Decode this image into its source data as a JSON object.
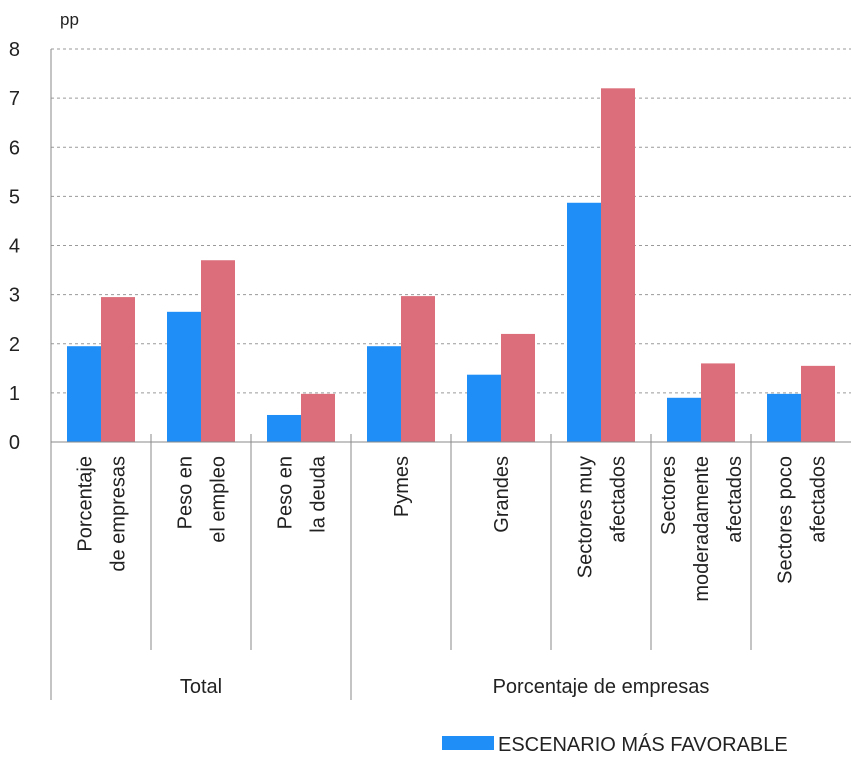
{
  "chart_data": {
    "type": "bar",
    "unit_label": "pp",
    "ylim": [
      0,
      8
    ],
    "yticks": [
      0,
      1,
      2,
      3,
      4,
      5,
      6,
      7,
      8
    ],
    "grid": "horizontal-dashed",
    "categories": [
      [
        "Porcentaje",
        "de empresas"
      ],
      [
        "Peso en",
        "el empleo"
      ],
      [
        "Peso en",
        "la deuda"
      ],
      [
        "Pymes"
      ],
      [
        "Grandes"
      ],
      [
        "Sectores muy",
        "afectados"
      ],
      [
        "Sectores",
        "moderadamente",
        "afectados"
      ],
      [
        "Sectores poco",
        "afectados"
      ]
    ],
    "groups": [
      {
        "label": "Total",
        "span": [
          0,
          2
        ]
      },
      {
        "label": "Porcentaje de empresas",
        "span": [
          3,
          7
        ]
      }
    ],
    "series": [
      {
        "name": "ESCENARIO MÁS FAVORABLE",
        "color": "#1f8ff7",
        "values": [
          1.95,
          2.65,
          0.55,
          1.95,
          1.37,
          4.87,
          0.9,
          0.98
        ]
      },
      {
        "name": "",
        "color": "#db6e7a",
        "values": [
          2.95,
          3.7,
          0.98,
          2.97,
          2.2,
          7.2,
          1.6,
          1.55
        ]
      }
    ],
    "legend_position": "bottom",
    "legend_text": "ESCENARIO MÁS FAVORABLE"
  }
}
